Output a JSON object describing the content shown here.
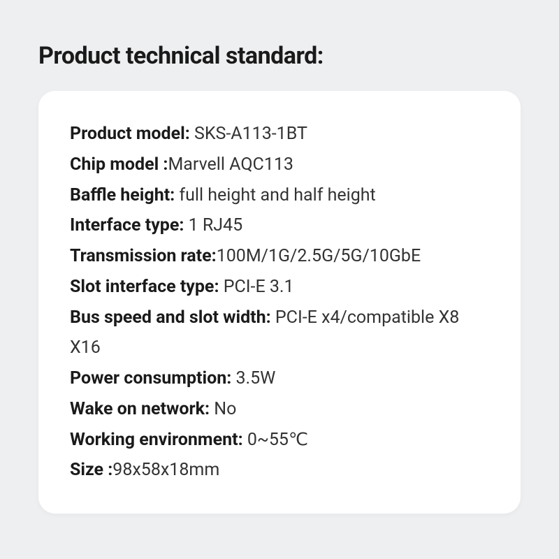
{
  "title": "Product technical standard:",
  "card": {
    "background_color": "#ffffff",
    "border_radius": 24
  },
  "page": {
    "background_color": "#eeeff1",
    "title_fontsize": 34,
    "spec_fontsize": 25
  },
  "specs": [
    {
      "label": "Product model:  ",
      "value": "SKS-A113-1BT"
    },
    {
      "label": "Chip model :",
      "value": "Marvell AQC113"
    },
    {
      "label": "Baffle height: ",
      "value": "full height and half height"
    },
    {
      "label": "Interface type: ",
      "value": "1 RJ45"
    },
    {
      "label": "Transmission rate:",
      "value": "100M/1G/2.5G/5G/10GbE"
    },
    {
      "label": "Slot interface type: ",
      "value": "PCI-E 3.1"
    },
    {
      "label": "Bus speed and slot width: ",
      "value": "PCI-E x4/compatible X8 X16"
    },
    {
      "label": "Power consumption: ",
      "value": "3.5W"
    },
    {
      "label": "Wake on network: ",
      "value": "No"
    },
    {
      "label": "Working environment: ",
      "value": "0~55℃"
    },
    {
      "label": "Size :",
      "value": "98x58x18mm"
    }
  ]
}
